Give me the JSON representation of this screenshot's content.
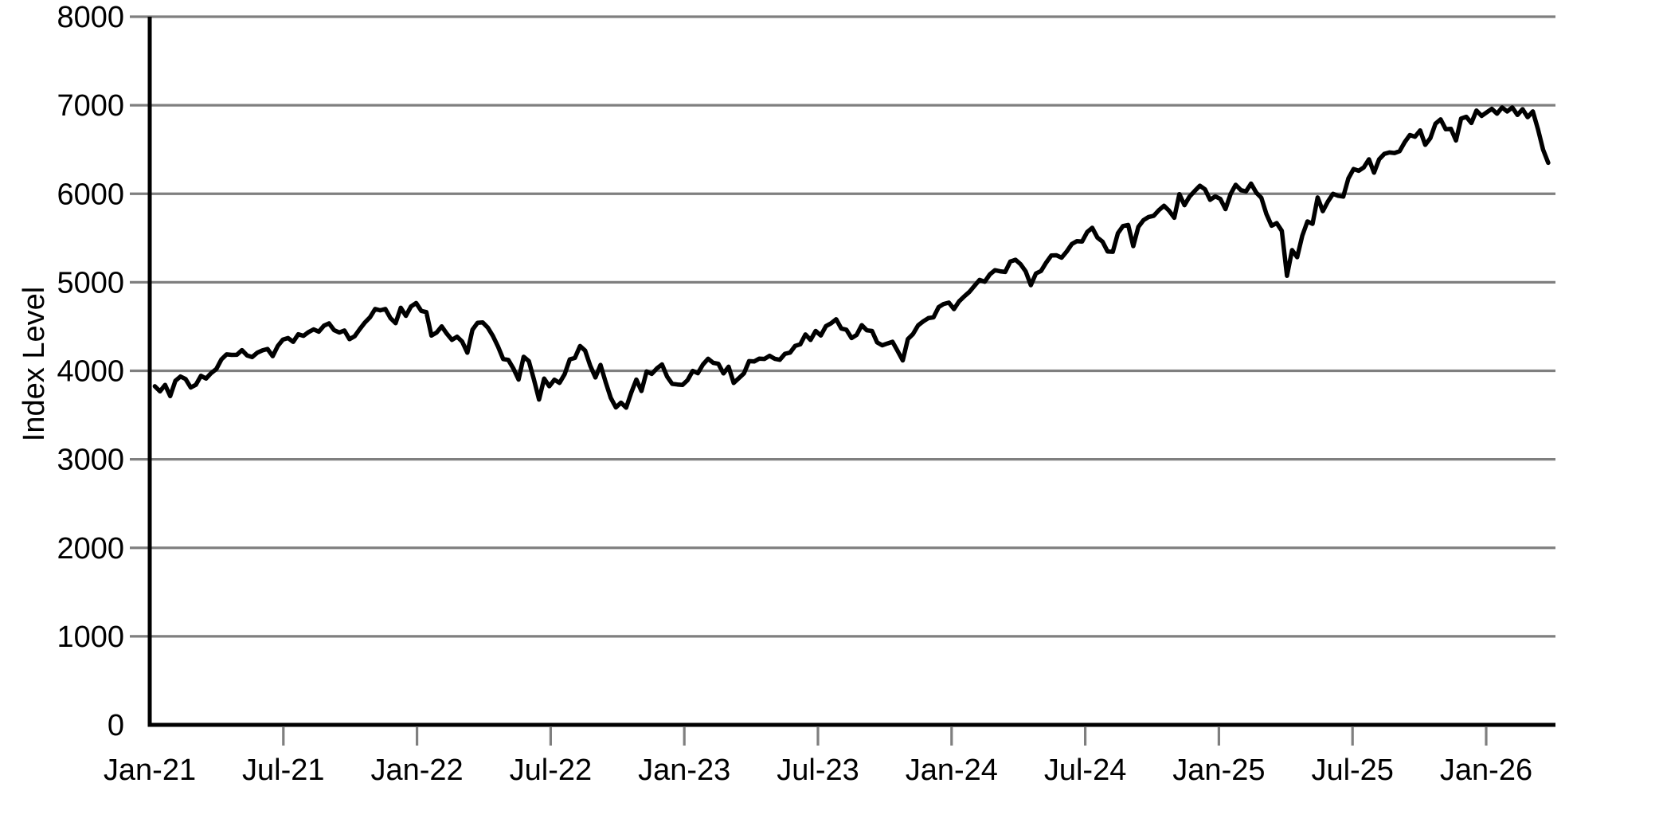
{
  "page": {
    "background": "#ffffff"
  },
  "chart_data": {
    "type": "line",
    "title": "",
    "xlabel": "",
    "ylabel": "Index Level",
    "ylim": [
      0,
      8000
    ],
    "ytick_step": 1000,
    "ytick_labels": [
      "0",
      "1000",
      "2000",
      "3000",
      "4000",
      "5000",
      "6000",
      "7000",
      "8000"
    ],
    "xtick_labels": [
      "Jan-21",
      "Jul-21",
      "Jan-22",
      "Jul-22",
      "Jan-23",
      "Jul-23",
      "Jan-24",
      "Jul-24",
      "Jan-25",
      "Jul-25",
      "Jan-26"
    ],
    "xtick_month_offsets": [
      0,
      6,
      12,
      18,
      24,
      30,
      36,
      42,
      48,
      54,
      60
    ],
    "grid": true,
    "legend_position": "none",
    "line_color": "#000000",
    "grid_color": "#7f7f7f",
    "axis_color": "#000000",
    "series": [
      {
        "name": "Index Level",
        "frequency": "weekly",
        "start": "Jan-21",
        "end": "Mar-26",
        "values": [
          3825,
          3768,
          3841,
          3714,
          3887,
          3935,
          3907,
          3811,
          3842,
          3943,
          3913,
          3975,
          4020,
          4129,
          4185,
          4180,
          4181,
          4233,
          4174,
          4156,
          4204,
          4230,
          4247,
          4166,
          4281,
          4352,
          4370,
          4327,
          4412,
          4395,
          4437,
          4468,
          4442,
          4509,
          4535,
          4459,
          4433,
          4455,
          4357,
          4391,
          4471,
          4545,
          4605,
          4698,
          4683,
          4698,
          4595,
          4538,
          4712,
          4621,
          4726,
          4766,
          4677,
          4663,
          4398,
          4432,
          4501,
          4419,
          4349,
          4385,
          4329,
          4204,
          4463,
          4543,
          4546,
          4488,
          4393,
          4272,
          4132,
          4123,
          4024,
          3901,
          4158,
          4109,
          3901,
          3675,
          3912,
          3825,
          3899,
          3863,
          3962,
          4130,
          4145,
          4280,
          4228,
          4058,
          3924,
          4067,
          3873,
          3693,
          3586,
          3640,
          3583,
          3753,
          3901,
          3771,
          3993,
          3965,
          4026,
          4072,
          3934,
          3852,
          3845,
          3840,
          3895,
          3999,
          3973,
          4071,
          4136,
          4090,
          4079,
          3970,
          4046,
          3862,
          3917,
          3971,
          4109,
          4105,
          4138,
          4134,
          4169,
          4136,
          4124,
          4192,
          4205,
          4282,
          4299,
          4410,
          4348,
          4450,
          4399,
          4505,
          4536,
          4582,
          4478,
          4464,
          4370,
          4406,
          4516,
          4457,
          4450,
          4320,
          4288,
          4309,
          4328,
          4224,
          4117,
          4358,
          4415,
          4514,
          4559,
          4595,
          4604,
          4719,
          4755,
          4770,
          4697,
          4784,
          4840,
          4891,
          4959,
          5027,
          5006,
          5089,
          5137,
          5124,
          5117,
          5234,
          5254,
          5204,
          5123,
          4967,
          5100,
          5128,
          5223,
          5303,
          5305,
          5278,
          5347,
          5432,
          5465,
          5460,
          5567,
          5615,
          5505,
          5459,
          5347,
          5344,
          5554,
          5635,
          5648,
          5408,
          5626,
          5703,
          5738,
          5751,
          5815,
          5865,
          5808,
          5729,
          5996,
          5871,
          5969,
          6032,
          6090,
          6051,
          5931,
          5971,
          5942,
          5827,
          5997,
          6101,
          6041,
          6026,
          6115,
          6013,
          5955,
          5770,
          5639,
          5668,
          5581,
          5074,
          5363,
          5283,
          5525,
          5687,
          5660,
          5958,
          5803,
          5912,
          6000,
          5977,
          5968,
          6173,
          6279,
          6260,
          6297,
          6389,
          6238,
          6389,
          6450,
          6467,
          6460,
          6481,
          6584,
          6664,
          6644,
          6716,
          6553,
          6629,
          6792,
          6840,
          6729,
          6734,
          6602,
          6849,
          6870,
          6800,
          6940,
          6880,
          6920,
          6960,
          6905,
          6975,
          6930,
          6975,
          6890,
          6955,
          6865,
          6930,
          6730,
          6500,
          6350
        ]
      }
    ]
  }
}
